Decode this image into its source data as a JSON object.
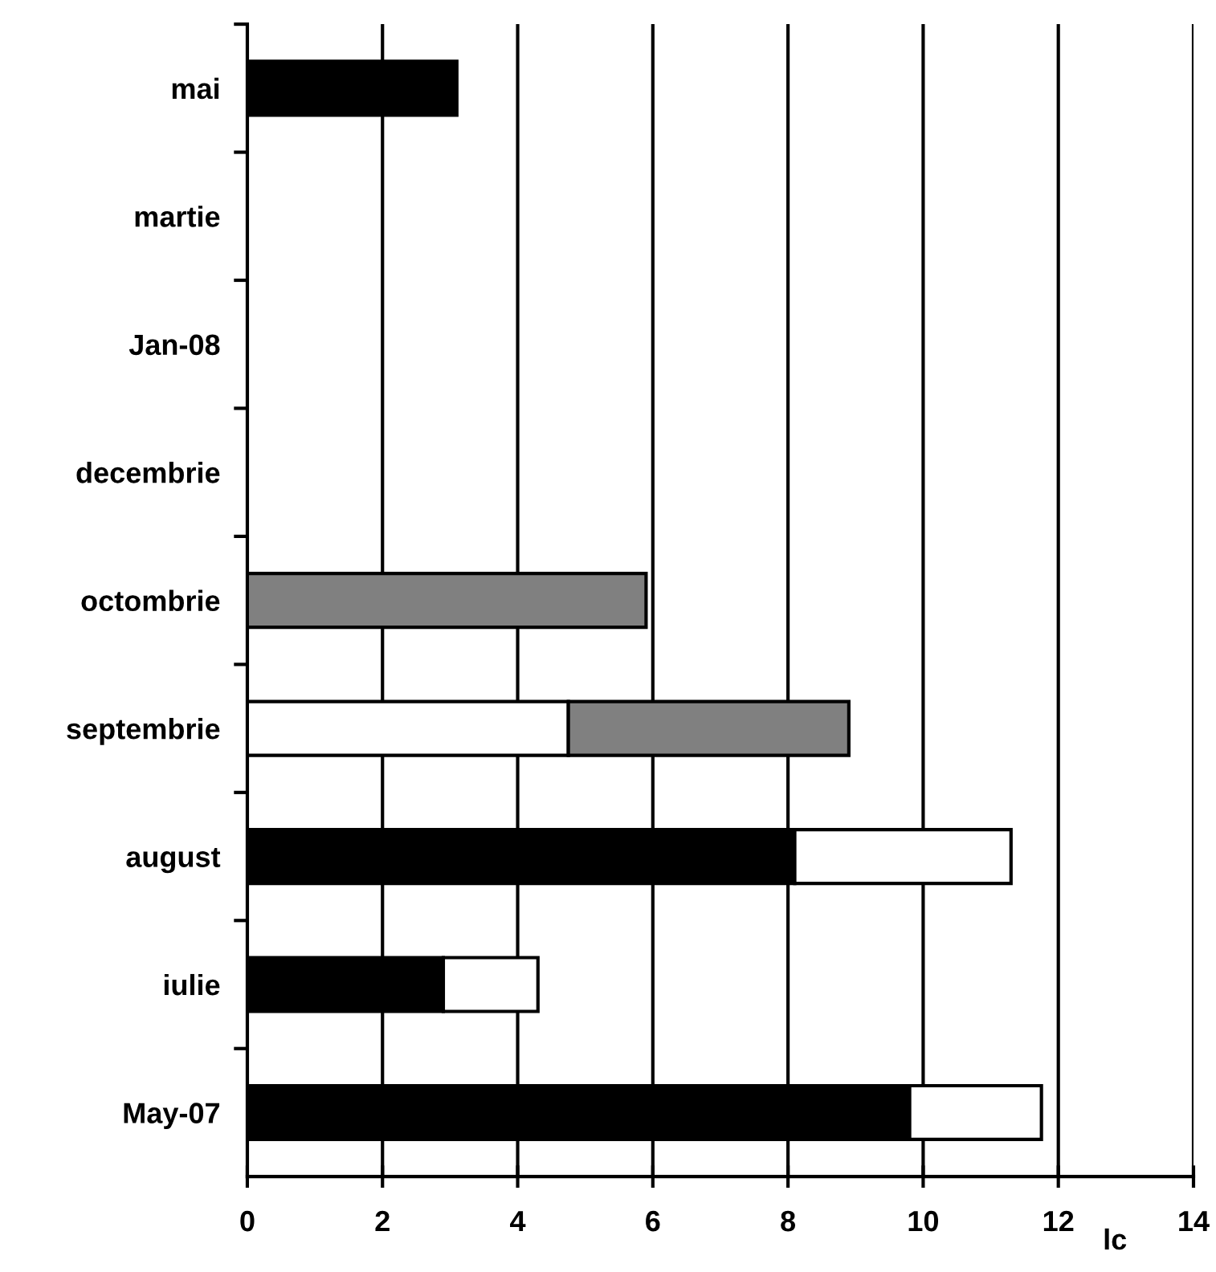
{
  "chart_data": {
    "type": "bar",
    "orientation": "horizontal",
    "stacked": true,
    "categories": [
      "mai",
      "martie",
      "Jan-08",
      "decembrie",
      "octombrie",
      "septembrie",
      "august",
      "iulie",
      "May-07"
    ],
    "series": [
      {
        "color": "#000000",
        "values": [
          3.1,
          null,
          null,
          null,
          null,
          null,
          8.1,
          2.9,
          9.8
        ]
      },
      {
        "color": "#ffffff",
        "values": [
          null,
          null,
          null,
          null,
          null,
          4.75,
          3.2,
          1.4,
          1.95
        ]
      },
      {
        "color": "#808080",
        "values": [
          null,
          null,
          null,
          null,
          5.9,
          4.15,
          null,
          null,
          null
        ]
      }
    ],
    "xlabel": "lc",
    "xlim": [
      0,
      14
    ],
    "xticks": [
      0,
      2,
      4,
      6,
      8,
      10,
      12,
      14
    ],
    "grid": "x",
    "legend": false
  }
}
